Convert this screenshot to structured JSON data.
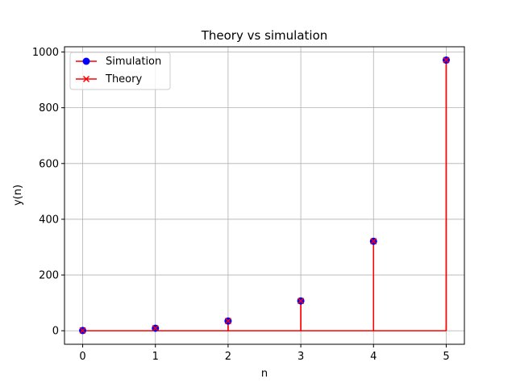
{
  "chart_data": {
    "type": "line",
    "title": "Theory vs simulation",
    "xlabel": "n",
    "ylabel": "y(n)",
    "x": [
      0,
      1,
      2,
      3,
      4,
      5
    ],
    "xlim": [
      -0.25,
      5.25
    ],
    "ylim": [
      -48.5,
      1018.8
    ],
    "xticks": [
      0,
      1,
      2,
      3,
      4,
      5
    ],
    "yticks": [
      0,
      200,
      400,
      600,
      800,
      1000
    ],
    "grid": true,
    "legend_position": "upper-left",
    "series": [
      {
        "name": "Simulation",
        "style": "stem",
        "marker": "circle",
        "marker_color": "#0000ff",
        "line_color": "#ff0000",
        "values": [
          1,
          9,
          35,
          107,
          321,
          971
        ]
      },
      {
        "name": "Theory",
        "style": "stem",
        "marker": "x",
        "marker_color": "#ff0000",
        "line_color": "#ff0000",
        "values": [
          1,
          9,
          35,
          107,
          321,
          971
        ]
      }
    ],
    "colors": {
      "grid": "#b0b0b0",
      "axes": "#000000",
      "stem": "#ff0000",
      "sim_marker": "#0000ff",
      "theory_marker": "#ff0000"
    }
  }
}
